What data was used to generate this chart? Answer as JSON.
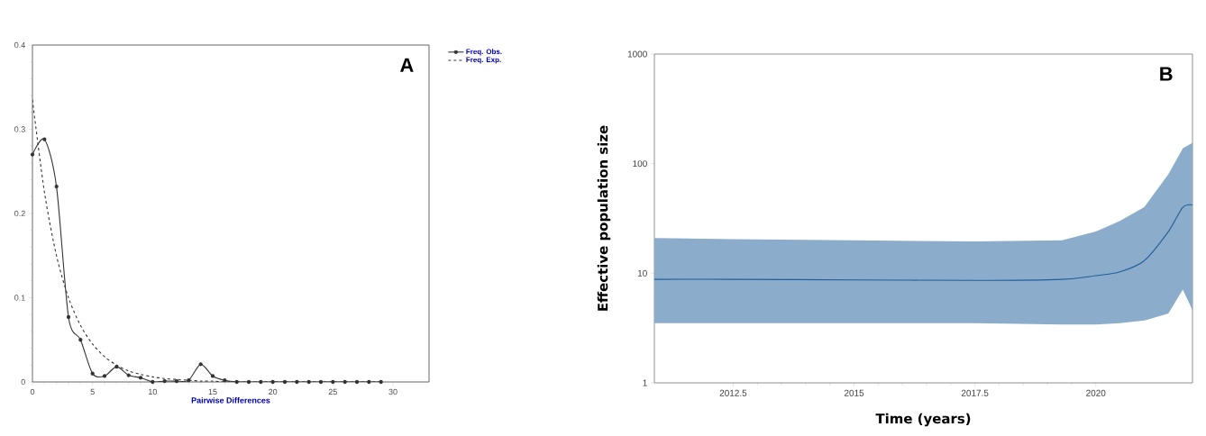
{
  "chart_data": [
    {
      "type": "line",
      "xlabel": "Pairwise Differences",
      "xlim": [
        0,
        33
      ],
      "ylim": [
        0,
        0.4
      ],
      "xticks": [
        0,
        5,
        10,
        15,
        20,
        25,
        30
      ],
      "yticks": [
        0,
        0.1,
        0.2,
        0.3,
        0.4
      ],
      "legend": "top right",
      "annotations": [
        "A"
      ],
      "series": [
        {
          "name": "Freq. Obs.",
          "color": "#333333",
          "marker": "circle",
          "line_style": "solid",
          "x": [
            0,
            1,
            2,
            3,
            4,
            5,
            6,
            7,
            8,
            9,
            10,
            11,
            12,
            13,
            14,
            15,
            16,
            17,
            18,
            19,
            20,
            21,
            22,
            23,
            24,
            25,
            26,
            27,
            28,
            29
          ],
          "values": [
            0.27,
            0.288,
            0.232,
            0.077,
            0.05,
            0.01,
            0.007,
            0.018,
            0.008,
            0.005,
            0,
            0.001,
            0.001,
            0.002,
            0.021,
            0.007,
            0.002,
            0,
            0,
            0,
            0,
            0,
            0,
            0,
            0,
            0,
            0,
            0,
            0,
            0
          ]
        },
        {
          "name": "Freq. Exp.",
          "color": "#333333",
          "marker": "none",
          "line_style": "dashed",
          "x": [
            0,
            1,
            2,
            3,
            4,
            5,
            6,
            7,
            8,
            9,
            10,
            11,
            12,
            13,
            14,
            15,
            16,
            17,
            18,
            19,
            20,
            21,
            22,
            23,
            24,
            25,
            26,
            27,
            28,
            29
          ],
          "values": [
            0.335,
            0.225,
            0.15,
            0.1,
            0.067,
            0.045,
            0.03,
            0.02,
            0.013,
            0.009,
            0.006,
            0.004,
            0.003,
            0.002,
            0.001,
            0.001,
            0,
            0,
            0,
            0,
            0,
            0,
            0,
            0,
            0,
            0,
            0,
            0,
            0,
            0
          ]
        }
      ]
    },
    {
      "type": "line",
      "xlabel": "Time (years)",
      "ylabel": "Effective population size",
      "log": "y",
      "xlim": [
        2010.87,
        2022
      ],
      "ylim": [
        1,
        1000
      ],
      "xticks": [
        2012.5,
        2015,
        2017.5,
        2020
      ],
      "yticks": [
        1,
        10,
        100,
        1000
      ],
      "annotations": [
        "B"
      ],
      "series": [
        {
          "color": "#1f5f99",
          "x": [
            2010.87,
            2012.5,
            2015,
            2017.5,
            2019.3,
            2020,
            2020.5,
            2021,
            2021.5,
            2021.8,
            2022
          ],
          "values": [
            8.8,
            8.8,
            8.7,
            8.6,
            8.8,
            9.5,
            10.3,
            13,
            24,
            40,
            42
          ],
          "lower": [
            3.5,
            3.5,
            3.5,
            3.5,
            3.4,
            3.4,
            3.5,
            3.7,
            4.3,
            7.1,
            4.6
          ],
          "upper": [
            21,
            20.5,
            20,
            19.5,
            20,
            24,
            30,
            40,
            80,
            138,
            155
          ]
        }
      ]
    }
  ]
}
